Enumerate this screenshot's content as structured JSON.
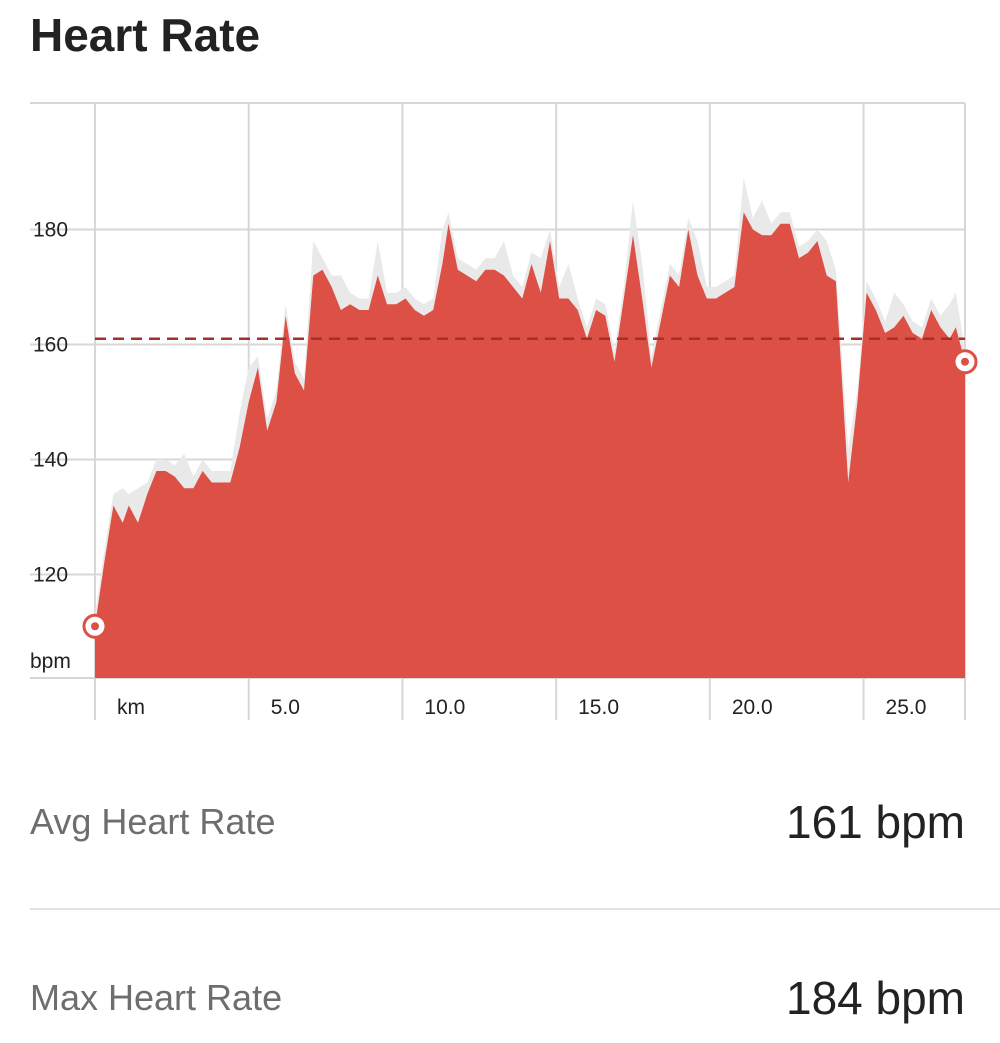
{
  "title": "Heart Rate",
  "chart_data": {
    "type": "area",
    "ylabel": "bpm",
    "xlabel": "km",
    "xlim": [
      0,
      28.3
    ],
    "ylim": [
      102,
      202
    ],
    "yticks": [
      120,
      140,
      160,
      180
    ],
    "xticks": [
      5.0,
      10.0,
      15.0,
      20.0,
      25.0
    ],
    "xtick_labels": [
      "5.0",
      "10.0",
      "15.0",
      "20.0",
      "25.0"
    ],
    "average": 161,
    "colors": {
      "heart": "#dd5046",
      "dark": "#b5453e",
      "band": "#e9e9e9",
      "grid": "#d7d7d7"
    },
    "series": [
      {
        "values": [
          [
            0,
            111
          ],
          [
            0.3,
            122
          ],
          [
            0.6,
            132
          ],
          [
            0.9,
            129
          ],
          [
            1.1,
            132
          ],
          [
            1.4,
            129
          ],
          [
            1.7,
            134
          ],
          [
            2.0,
            138
          ],
          [
            2.3,
            138
          ],
          [
            2.6,
            137
          ],
          [
            2.9,
            135
          ],
          [
            3.2,
            135
          ],
          [
            3.5,
            138
          ],
          [
            3.8,
            136
          ],
          [
            4.1,
            136
          ],
          [
            4.4,
            136
          ],
          [
            4.7,
            142
          ],
          [
            5.0,
            150
          ],
          [
            5.3,
            156
          ],
          [
            5.6,
            145
          ],
          [
            5.9,
            150
          ],
          [
            6.2,
            165
          ],
          [
            6.5,
            155
          ],
          [
            6.8,
            152
          ],
          [
            7.1,
            172
          ],
          [
            7.4,
            173
          ],
          [
            7.7,
            170
          ],
          [
            8.0,
            166
          ],
          [
            8.3,
            167
          ],
          [
            8.6,
            166
          ],
          [
            8.9,
            166
          ],
          [
            9.2,
            172
          ],
          [
            9.5,
            167
          ],
          [
            9.8,
            167
          ],
          [
            10.1,
            168
          ],
          [
            10.4,
            166
          ],
          [
            10.7,
            165
          ],
          [
            11.0,
            166
          ],
          [
            11.3,
            174
          ],
          [
            11.5,
            181
          ],
          [
            11.8,
            173
          ],
          [
            12.1,
            172
          ],
          [
            12.4,
            171
          ],
          [
            12.7,
            173
          ],
          [
            13.0,
            173
          ],
          [
            13.3,
            172
          ],
          [
            13.6,
            170
          ],
          [
            13.9,
            168
          ],
          [
            14.2,
            174
          ],
          [
            14.5,
            169
          ],
          [
            14.8,
            178
          ],
          [
            15.1,
            168
          ],
          [
            15.4,
            168
          ],
          [
            15.7,
            166
          ],
          [
            16.0,
            161
          ],
          [
            16.3,
            166
          ],
          [
            16.6,
            165
          ],
          [
            16.9,
            157
          ],
          [
            17.2,
            168
          ],
          [
            17.5,
            179
          ],
          [
            17.8,
            168
          ],
          [
            18.1,
            156
          ],
          [
            18.4,
            164
          ],
          [
            18.7,
            172
          ],
          [
            19.0,
            170
          ],
          [
            19.3,
            180
          ],
          [
            19.6,
            172
          ],
          [
            19.9,
            168
          ],
          [
            20.2,
            168
          ],
          [
            20.5,
            169
          ],
          [
            20.8,
            170
          ],
          [
            21.1,
            183
          ],
          [
            21.4,
            180
          ],
          [
            21.7,
            179
          ],
          [
            22.0,
            179
          ],
          [
            22.3,
            181
          ],
          [
            22.6,
            181
          ],
          [
            22.9,
            175
          ],
          [
            23.2,
            176
          ],
          [
            23.5,
            178
          ],
          [
            23.8,
            172
          ],
          [
            24.1,
            171
          ],
          [
            24.5,
            136
          ],
          [
            24.8,
            150
          ],
          [
            25.1,
            169
          ],
          [
            25.4,
            166
          ],
          [
            25.7,
            162
          ],
          [
            26.0,
            163
          ],
          [
            26.3,
            165
          ],
          [
            26.6,
            162
          ],
          [
            26.9,
            161
          ],
          [
            27.2,
            166
          ],
          [
            27.5,
            163
          ],
          [
            27.8,
            161
          ],
          [
            28.0,
            163
          ],
          [
            28.3,
            157
          ]
        ]
      }
    ]
  },
  "stats": [
    {
      "label": "Avg Heart Rate",
      "value": "161 bpm"
    },
    {
      "label": "Max Heart Rate",
      "value": "184 bpm"
    }
  ]
}
